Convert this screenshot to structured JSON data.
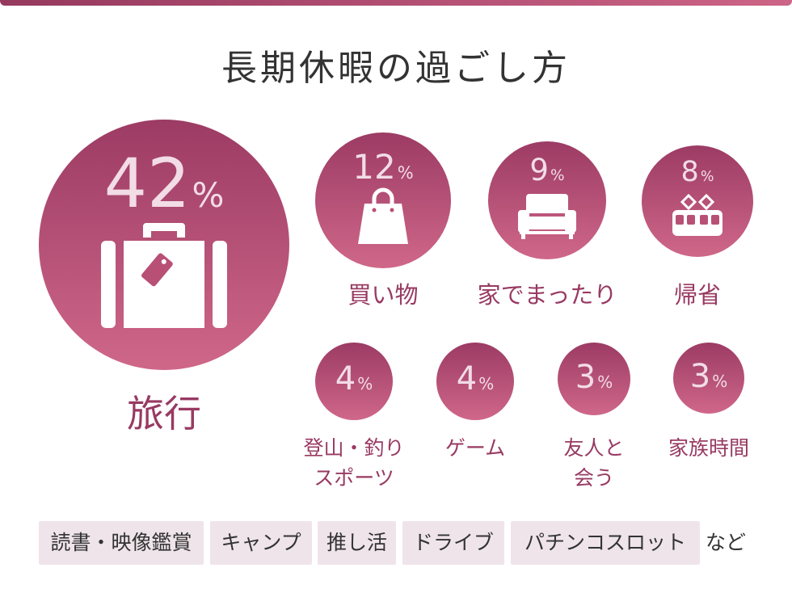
{
  "title": "長期休暇の過ごし方",
  "percent_symbol": "%",
  "accent_color": "#a84069",
  "items": [
    {
      "value": "42",
      "label": "旅行",
      "icon": "suitcase-icon"
    },
    {
      "value": "12",
      "label": "買い物",
      "icon": "shopping-bag-icon"
    },
    {
      "value": "9",
      "label": "家でまったり",
      "icon": "sofa-icon"
    },
    {
      "value": "8",
      "label": "帰省",
      "icon": "train-icon"
    },
    {
      "value": "4",
      "label_line1": "登山・釣り",
      "label_line2": "スポーツ"
    },
    {
      "value": "4",
      "label": "ゲーム"
    },
    {
      "value": "3",
      "label_line1": "友人と",
      "label_line2": "会う"
    },
    {
      "value": "3",
      "label": "家族時間"
    }
  ],
  "others": [
    "読書・映像鑑賞",
    "キャンプ",
    "推し活",
    "ドライブ",
    "パチンコスロット"
  ],
  "others_suffix": "など"
}
